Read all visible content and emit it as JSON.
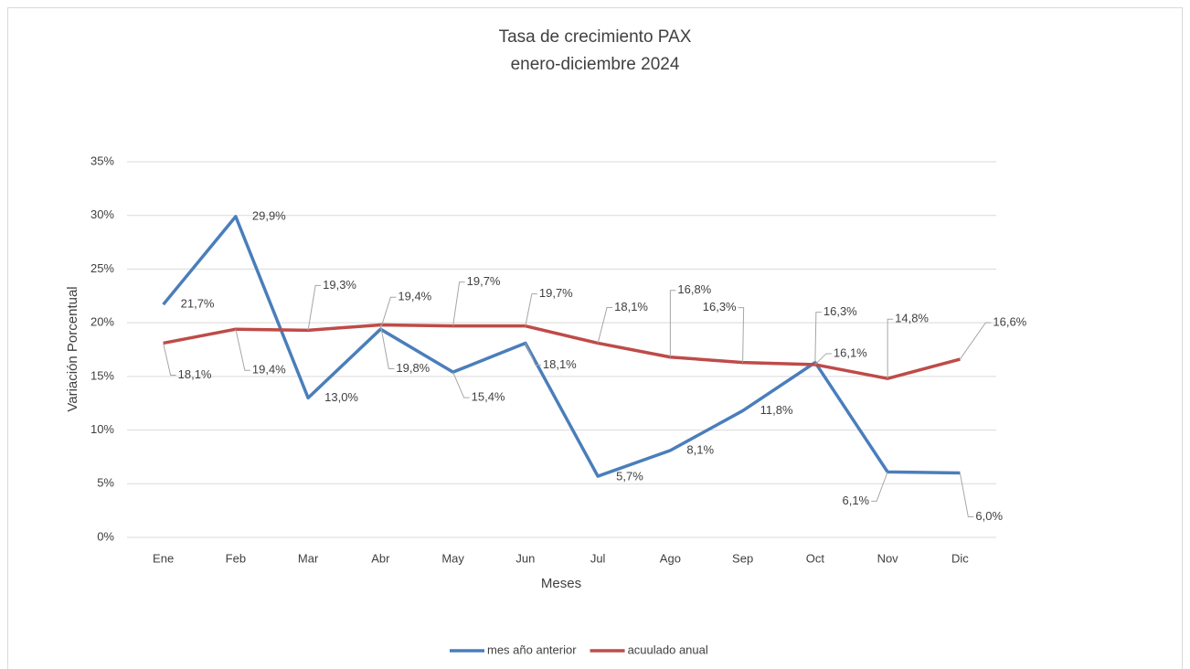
{
  "chart_data": {
    "type": "line",
    "title": "Tasa de crecimiento PAX",
    "subtitle": "enero-diciembre 2024",
    "x_label": "Meses",
    "y_label": "Variación Porcentual",
    "categories": [
      "Ene",
      "Feb",
      "Mar",
      "Abr",
      "May",
      "Jun",
      "Jul",
      "Ago",
      "Sep",
      "Oct",
      "Nov",
      "Dic"
    ],
    "series": [
      {
        "name": "mes año anterior",
        "color": "#4a7ebb",
        "values": [
          21.7,
          29.9,
          13.0,
          19.4,
          15.4,
          18.1,
          5.7,
          8.1,
          11.8,
          16.3,
          6.1,
          6.0
        ],
        "value_labels": [
          "21,7%",
          "29,9%",
          "13,0%",
          "19,4%",
          "15,4%",
          "18,1%",
          "5,7%",
          "8,1%",
          "11,8%",
          "16,3%",
          "6,1%",
          "6,0%"
        ]
      },
      {
        "name": "acuulado anual",
        "color": "#be4b48",
        "values": [
          18.1,
          19.4,
          19.3,
          19.8,
          19.7,
          19.7,
          18.1,
          16.8,
          16.3,
          16.1,
          14.8,
          16.6
        ],
        "value_labels": [
          "18,1%",
          "19,4%",
          "19,3%",
          "19,8%",
          "19,7%",
          "19,7%",
          "18,1%",
          "16,8%",
          "16,3%",
          "16,1%",
          "14,8%",
          "16,6%"
        ]
      }
    ],
    "ylim": [
      0,
      35
    ],
    "yticks": [
      {
        "value": 0,
        "label": "0%"
      },
      {
        "value": 5,
        "label": "5%"
      },
      {
        "value": 10,
        "label": "10%"
      },
      {
        "value": 15,
        "label": "15%"
      },
      {
        "value": 20,
        "label": "20%"
      },
      {
        "value": 25,
        "label": "25%"
      },
      {
        "value": 30,
        "label": "30%"
      },
      {
        "value": 35,
        "label": "35%"
      }
    ],
    "grid": true,
    "legend": "bottom"
  }
}
